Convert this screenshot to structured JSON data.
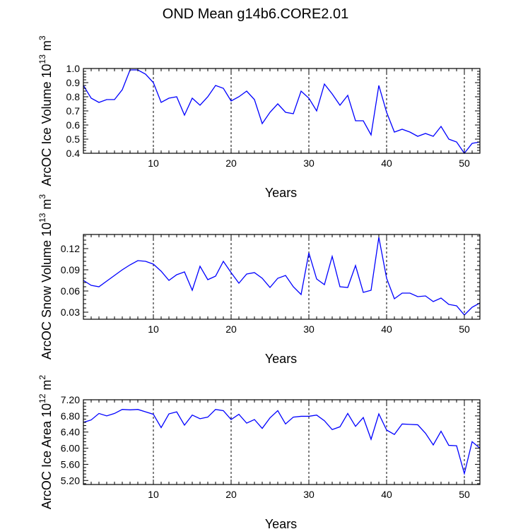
{
  "title": "OND Mean g14b6.CORE2.01",
  "colors": {
    "line": "#0000ff",
    "axis": "#000000"
  },
  "chart_data": [
    {
      "type": "line",
      "ylabel_prefix": "ArcOC Ice Volume 10",
      "ylabel_exp": "13",
      "ylabel_unit": " m",
      "ylabel_unit_exp": "3",
      "xlabel": "Years",
      "xlim": [
        1,
        52
      ],
      "ylim": [
        0.4,
        1.0
      ],
      "xticks": [
        10,
        20,
        30,
        40,
        50
      ],
      "xtick_labels": [
        "10",
        "20",
        "30",
        "40",
        "50"
      ],
      "yticks": [
        0.4,
        0.5,
        0.6,
        0.7,
        0.8,
        0.9,
        1.0
      ],
      "ytick_labels": [
        "0.4",
        "0.5",
        "0.6",
        "0.7",
        "0.8",
        "0.9",
        "1.0"
      ],
      "x": [
        1,
        2,
        3,
        4,
        5,
        6,
        7,
        8,
        9,
        10,
        11,
        12,
        13,
        14,
        15,
        16,
        17,
        18,
        19,
        20,
        21,
        22,
        23,
        24,
        25,
        26,
        27,
        28,
        29,
        30,
        31,
        32,
        33,
        34,
        35,
        36,
        37,
        38,
        39,
        40,
        41,
        42,
        43,
        44,
        45,
        46,
        47,
        48,
        49,
        50,
        51,
        52
      ],
      "series": [
        {
          "name": "Ice Volume",
          "values": [
            0.88,
            0.79,
            0.76,
            0.78,
            0.78,
            0.85,
            0.99,
            0.99,
            0.96,
            0.9,
            0.76,
            0.79,
            0.8,
            0.67,
            0.79,
            0.74,
            0.8,
            0.88,
            0.86,
            0.77,
            0.8,
            0.84,
            0.78,
            0.61,
            0.69,
            0.75,
            0.69,
            0.68,
            0.84,
            0.79,
            0.7,
            0.89,
            0.82,
            0.74,
            0.81,
            0.63,
            0.63,
            0.53,
            0.88,
            0.69,
            0.55,
            0.57,
            0.55,
            0.52,
            0.54,
            0.52,
            0.59,
            0.5,
            0.48,
            0.4,
            0.47,
            0.48
          ]
        }
      ]
    },
    {
      "type": "line",
      "ylabel_prefix": "ArcOC Snow Volume 10",
      "ylabel_exp": "13",
      "ylabel_unit": " m",
      "ylabel_unit_exp": "3",
      "xlabel": "Years",
      "xlim": [
        1,
        52
      ],
      "ylim": [
        0.02,
        0.14
      ],
      "xticks": [
        10,
        20,
        30,
        40,
        50
      ],
      "xtick_labels": [
        "10",
        "20",
        "30",
        "40",
        "50"
      ],
      "yticks": [
        0.03,
        0.06,
        0.09,
        0.12
      ],
      "ytick_labels": [
        "0.03",
        "0.06",
        "0.09",
        "0.12"
      ],
      "x": [
        1,
        2,
        3,
        4,
        5,
        6,
        7,
        8,
        9,
        10,
        11,
        12,
        13,
        14,
        15,
        16,
        17,
        18,
        19,
        20,
        21,
        22,
        23,
        24,
        25,
        26,
        27,
        28,
        29,
        30,
        31,
        32,
        33,
        34,
        35,
        36,
        37,
        38,
        39,
        40,
        41,
        42,
        43,
        44,
        45,
        46,
        47,
        48,
        49,
        50,
        51,
        52
      ],
      "series": [
        {
          "name": "Snow Volume",
          "values": [
            0.075,
            0.068,
            0.066,
            0.074,
            0.082,
            0.09,
            0.097,
            0.103,
            0.102,
            0.098,
            0.088,
            0.075,
            0.083,
            0.087,
            0.061,
            0.095,
            0.076,
            0.081,
            0.102,
            0.086,
            0.071,
            0.084,
            0.086,
            0.078,
            0.065,
            0.078,
            0.082,
            0.066,
            0.055,
            0.114,
            0.077,
            0.069,
            0.109,
            0.066,
            0.065,
            0.096,
            0.058,
            0.061,
            0.136,
            0.078,
            0.049,
            0.057,
            0.057,
            0.052,
            0.053,
            0.045,
            0.05,
            0.041,
            0.039,
            0.026,
            0.037,
            0.043
          ]
        }
      ]
    },
    {
      "type": "line",
      "ylabel_prefix": "ArcOC Ice Area 10",
      "ylabel_exp": "12",
      "ylabel_unit": " m",
      "ylabel_unit_exp": "2",
      "xlabel": "Years",
      "xlim": [
        1,
        52
      ],
      "ylim": [
        5.1,
        7.2
      ],
      "xticks": [
        10,
        20,
        30,
        40,
        50
      ],
      "xtick_labels": [
        "10",
        "20",
        "30",
        "40",
        "50"
      ],
      "yticks": [
        5.2,
        5.6,
        6.0,
        6.4,
        6.8,
        7.2
      ],
      "ytick_labels": [
        "5.20",
        "5.60",
        "6.00",
        "6.40",
        "6.80",
        "7.20"
      ],
      "x": [
        1,
        2,
        3,
        4,
        5,
        6,
        7,
        8,
        9,
        10,
        11,
        12,
        13,
        14,
        15,
        16,
        17,
        18,
        19,
        20,
        21,
        22,
        23,
        24,
        25,
        26,
        27,
        28,
        29,
        30,
        31,
        32,
        33,
        34,
        35,
        36,
        37,
        38,
        39,
        40,
        41,
        42,
        43,
        44,
        45,
        46,
        47,
        48,
        49,
        50,
        51,
        52
      ],
      "series": [
        {
          "name": "Ice Area",
          "values": [
            6.64,
            6.7,
            6.86,
            6.8,
            6.86,
            6.96,
            6.95,
            6.96,
            6.9,
            6.84,
            6.51,
            6.85,
            6.9,
            6.57,
            6.82,
            6.73,
            6.77,
            6.96,
            6.93,
            6.71,
            6.84,
            6.62,
            6.71,
            6.49,
            6.75,
            6.93,
            6.6,
            6.77,
            6.79,
            6.79,
            6.82,
            6.68,
            6.46,
            6.53,
            6.86,
            6.54,
            6.76,
            6.22,
            6.85,
            6.45,
            6.34,
            6.6,
            6.59,
            6.58,
            6.37,
            6.08,
            6.42,
            6.07,
            6.06,
            5.37,
            6.16,
            6.0
          ]
        }
      ]
    }
  ]
}
